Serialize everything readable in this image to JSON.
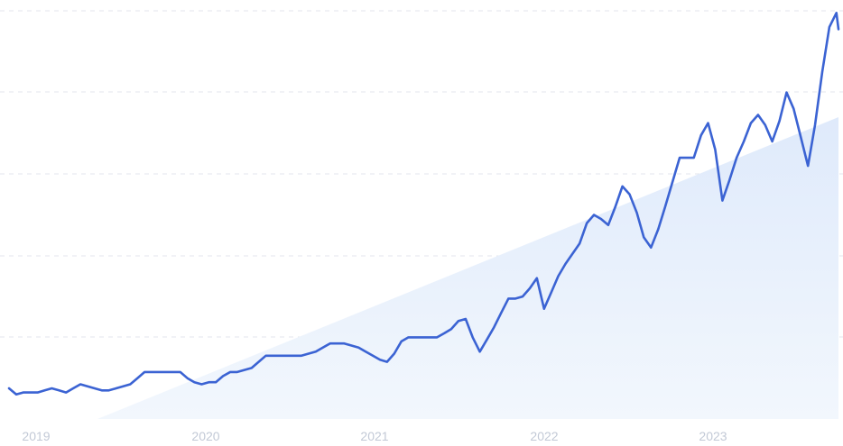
{
  "chart_data": {
    "type": "line",
    "title": "",
    "xlabel": "",
    "ylabel": "",
    "x_ticks": [
      "2019",
      "2020",
      "2021",
      "2022",
      "2023"
    ],
    "x_range": [
      2018.875,
      2023.72
    ],
    "ylim": [
      0,
      100
    ],
    "grid": "horizontal dashed",
    "legend": "none",
    "trend_area": true,
    "colors": {
      "line": "#3b63d3",
      "trend_fill": "#e8f1fc",
      "grid": "#e3e6ec",
      "tick_text": "#c2c9d6"
    },
    "series": [
      {
        "x": [
          2018.875,
          2018.917,
          2018.958,
          2019.0,
          2019.042,
          2019.083,
          2019.125,
          2019.167,
          2019.208,
          2019.25,
          2019.292,
          2019.333,
          2019.375,
          2019.417,
          2019.458,
          2019.5,
          2019.542,
          2019.583,
          2019.625,
          2019.667,
          2019.708,
          2019.75,
          2019.792,
          2019.833,
          2019.875,
          2019.917,
          2019.958,
          2020.0,
          2020.042,
          2020.083,
          2020.125,
          2020.167,
          2020.208,
          2020.25,
          2020.292,
          2020.333,
          2020.375,
          2020.417,
          2020.458,
          2020.5,
          2020.542,
          2020.583,
          2020.625,
          2020.667,
          2020.708,
          2020.75,
          2020.792,
          2020.833,
          2020.875,
          2020.917,
          2020.958,
          2021.0,
          2021.042,
          2021.083,
          2021.125,
          2021.167,
          2021.208,
          2021.25,
          2021.292,
          2021.333,
          2021.375,
          2021.417,
          2021.458,
          2021.5,
          2021.542,
          2021.583,
          2021.625,
          2021.667,
          2021.708,
          2021.75,
          2021.792,
          2021.833,
          2021.875,
          2021.917,
          2021.958,
          2022.0,
          2022.042,
          2022.083,
          2022.125,
          2022.167,
          2022.208,
          2022.25,
          2022.292,
          2022.333,
          2022.375,
          2022.417,
          2022.458,
          2022.5,
          2022.542,
          2022.583,
          2022.625,
          2022.667,
          2022.708,
          2022.75,
          2022.792,
          2022.833,
          2022.875,
          2022.917,
          2022.958,
          2023.0,
          2023.042,
          2023.083,
          2023.125,
          2023.167,
          2023.208,
          2023.25,
          2023.292,
          2023.333,
          2023.375,
          2023.417,
          2023.458,
          2023.5,
          2023.542,
          2023.583,
          2023.625,
          2023.667,
          2023.708,
          2023.72
        ],
        "y": [
          7.5,
          6.0,
          6.5,
          6.5,
          6.5,
          7.0,
          7.5,
          7.0,
          6.5,
          7.5,
          8.5,
          8.0,
          7.5,
          7.0,
          7.0,
          7.5,
          8.0,
          8.5,
          10.0,
          11.5,
          11.5,
          11.5,
          11.5,
          11.5,
          11.5,
          10.0,
          9.0,
          8.5,
          9.0,
          9.0,
          10.5,
          11.5,
          11.5,
          12.0,
          12.5,
          14.0,
          15.5,
          15.5,
          15.5,
          15.5,
          15.5,
          15.5,
          16.0,
          16.5,
          17.5,
          18.5,
          18.5,
          18.5,
          18.0,
          17.5,
          16.5,
          15.5,
          14.5,
          14.0,
          16.0,
          19.0,
          20.0,
          20.0,
          20.0,
          20.0,
          20.0,
          21.0,
          22.0,
          24.0,
          24.5,
          20.0,
          16.5,
          19.5,
          22.5,
          26.0,
          29.5,
          29.5,
          30.0,
          32.0,
          34.5,
          27.0,
          31.0,
          35.0,
          38.0,
          40.5,
          43.0,
          48.0,
          50.0,
          49.0,
          47.5,
          52.0,
          57.0,
          55.0,
          50.5,
          44.5,
          42.0,
          46.5,
          52.0,
          58.0,
          64.0,
          64.0,
          64.0,
          69.5,
          72.5,
          66.0,
          53.5,
          58.5,
          64.0,
          68.0,
          72.5,
          74.5,
          72.0,
          68.0,
          73.0,
          80.0,
          76.0,
          69.0,
          62.0,
          72.0,
          85.0,
          96.0,
          99.5,
          95.5
        ]
      }
    ]
  }
}
